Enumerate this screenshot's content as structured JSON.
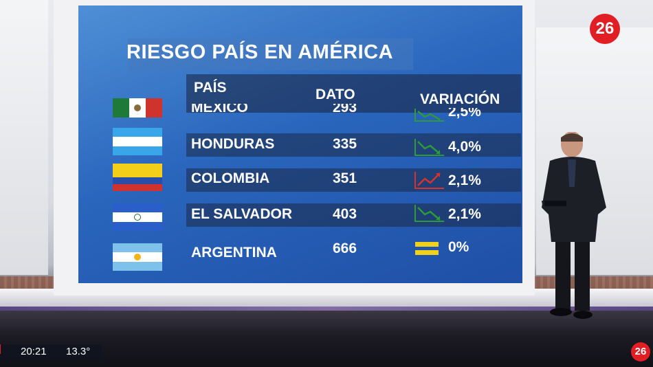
{
  "graphic": {
    "title": "RIESGO PAÍS EN AMÉRICA",
    "headers": {
      "country": "PAÍS",
      "value": "DATO",
      "change": "VARIACIÓN"
    },
    "rows": [
      {
        "country": "MEXICO",
        "value": "293",
        "change": "2,5%",
        "trend": "down",
        "flag": "mexico-flag-icon"
      },
      {
        "country": "HONDURAS",
        "value": "335",
        "change": "4,0%",
        "trend": "down",
        "flag": "honduras-flag-icon"
      },
      {
        "country": "COLOMBIA",
        "value": "351",
        "change": "2,1%",
        "trend": "up",
        "flag": "colombia-flag-icon"
      },
      {
        "country": "EL SALVADOR",
        "value": "403",
        "change": "2,1%",
        "trend": "down",
        "flag": "el-salvador-flag-icon"
      },
      {
        "country": "ARGENTINA",
        "value": "666",
        "change": "0%",
        "trend": "flat",
        "flag": "argentina-flag-icon"
      }
    ],
    "colors": {
      "down": "#2e9a3a",
      "up": "#d8322c",
      "flat": "#f0d11c",
      "screen": "#2a66bd"
    }
  },
  "channel": {
    "logo": "26"
  },
  "ticker": {
    "time": "20:21",
    "temperature": "13.3°"
  }
}
